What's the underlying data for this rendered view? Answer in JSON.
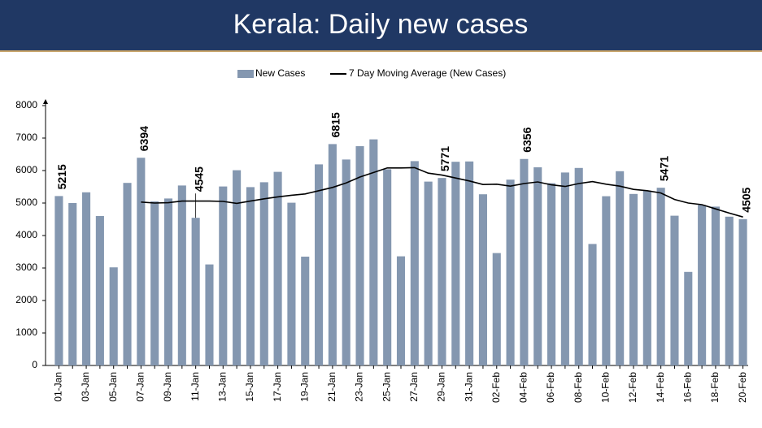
{
  "chart_data": {
    "type": "bar",
    "title": "Kerala: Daily new cases",
    "categories": [
      "01-Jan",
      null,
      "03-Jan",
      null,
      "05-Jan",
      null,
      "07-Jan",
      null,
      "09-Jan",
      null,
      "11-Jan",
      null,
      "13-Jan",
      null,
      "15-Jan",
      null,
      "17-Jan",
      null,
      "19-Jan",
      null,
      "21-Jan",
      null,
      "23-Jan",
      null,
      "25-Jan",
      null,
      "27-Jan",
      null,
      "29-Jan",
      null,
      "31-Jan",
      null,
      "02-Feb",
      null,
      "04-Feb",
      null,
      "06-Feb",
      null,
      "08-Feb",
      null,
      "10-Feb",
      null,
      "12-Feb",
      null,
      "14-Feb",
      null,
      "16-Feb",
      null,
      "18-Feb",
      null,
      "20-Feb"
    ],
    "series": [
      {
        "name": "New Cases",
        "type": "bar",
        "color": "#8497b0",
        "values": [
          5215,
          5000,
          5330,
          4600,
          3020,
          5620,
          6394,
          5050,
          5140,
          5540,
          4545,
          3110,
          5510,
          6010,
          5490,
          5640,
          5960,
          5010,
          3350,
          6190,
          6815,
          6340,
          6750,
          6960,
          6040,
          3360,
          6290,
          5660,
          5771,
          6270,
          6280,
          5270,
          3460,
          5720,
          6356,
          6100,
          5610,
          5940,
          6080,
          3740,
          5210,
          5980,
          5280,
          5380,
          5471,
          4610,
          2880,
          4940,
          4890,
          4580,
          4505
        ],
        "value_labels": [
          "5215",
          null,
          null,
          null,
          null,
          null,
          "6394",
          null,
          null,
          null,
          "4545",
          null,
          null,
          null,
          null,
          null,
          null,
          null,
          null,
          null,
          "6815",
          null,
          null,
          null,
          null,
          null,
          null,
          null,
          "5771",
          null,
          null,
          null,
          null,
          null,
          "6356",
          null,
          null,
          null,
          null,
          null,
          null,
          null,
          null,
          null,
          "5471",
          null,
          null,
          null,
          null,
          null,
          "4505"
        ]
      },
      {
        "name": "7 Day Moving Average (New Cases)",
        "type": "line",
        "color": "#000000",
        "values": [
          null,
          null,
          null,
          null,
          null,
          null,
          5030,
          5000,
          5010,
          5060,
          5060,
          5060,
          5050,
          4990,
          5060,
          5130,
          5190,
          5240,
          5280,
          5380,
          5480,
          5620,
          5800,
          5940,
          6080,
          6080,
          6090,
          5920,
          5860,
          5770,
          5680,
          5570,
          5580,
          5520,
          5600,
          5650,
          5560,
          5510,
          5600,
          5660,
          5580,
          5520,
          5420,
          5380,
          5310,
          5110,
          5000,
          4950,
          4820,
          4690,
          4570
        ]
      }
    ],
    "ylim": [
      0,
      8000
    ],
    "yticks": [
      0,
      1000,
      2000,
      3000,
      4000,
      5000,
      6000,
      7000,
      8000
    ],
    "grid": false
  }
}
